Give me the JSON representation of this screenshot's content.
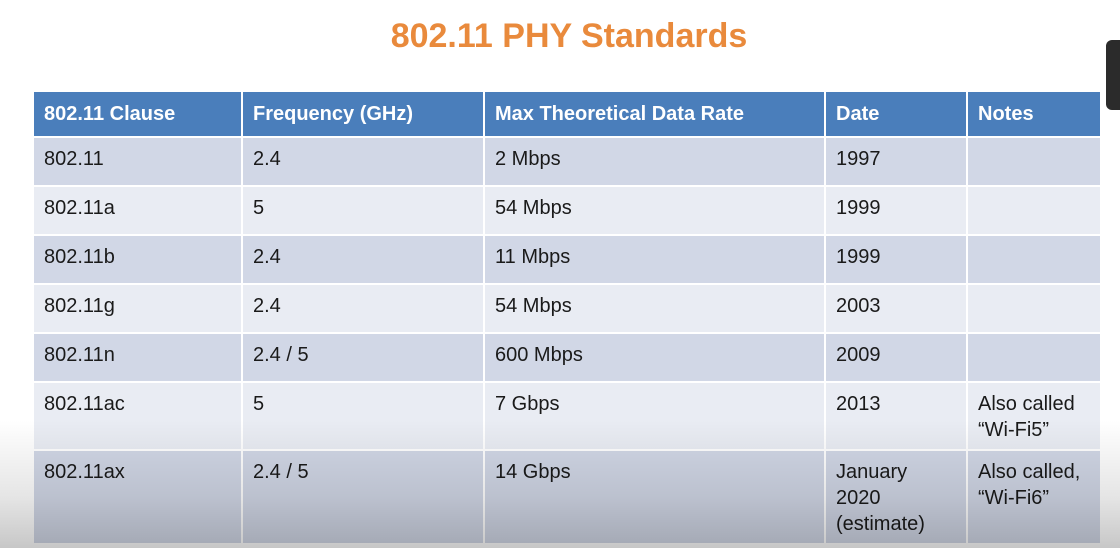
{
  "slide": {
    "title": "802.11 PHY Standards"
  },
  "table": {
    "headers": [
      "802.11 Clause",
      "Frequency (GHz)",
      "Max Theoretical Data Rate",
      "Date",
      "Notes"
    ],
    "rows": [
      {
        "clause": "802.11",
        "frequency": "2.4",
        "rate": "2 Mbps",
        "date": "1997",
        "notes": ""
      },
      {
        "clause": "802.11a",
        "frequency": "5",
        "rate": "54 Mbps",
        "date": "1999",
        "notes": ""
      },
      {
        "clause": "802.11b",
        "frequency": "2.4",
        "rate": "11 Mbps",
        "date": "1999",
        "notes": ""
      },
      {
        "clause": "802.11g",
        "frequency": "2.4",
        "rate": "54 Mbps",
        "date": "2003",
        "notes": ""
      },
      {
        "clause": "802.11n",
        "frequency": "2.4 / 5",
        "rate": "600 Mbps",
        "date": "2009",
        "notes": ""
      },
      {
        "clause": "802.11ac",
        "frequency": "5",
        "rate": "7 Gbps",
        "date": "2013",
        "notes": "Also called “Wi-Fi5”"
      },
      {
        "clause": "802.11ax",
        "frequency": "2.4 / 5",
        "rate": "14 Gbps",
        "date": "January 2020 (estimate)",
        "notes": "Also called, “Wi-Fi6”"
      }
    ]
  },
  "colors": {
    "title": "#e98a3c",
    "header_bg": "#4a7ebb",
    "row_dark": "#d1d7e6",
    "row_light": "#e9ecf3"
  }
}
